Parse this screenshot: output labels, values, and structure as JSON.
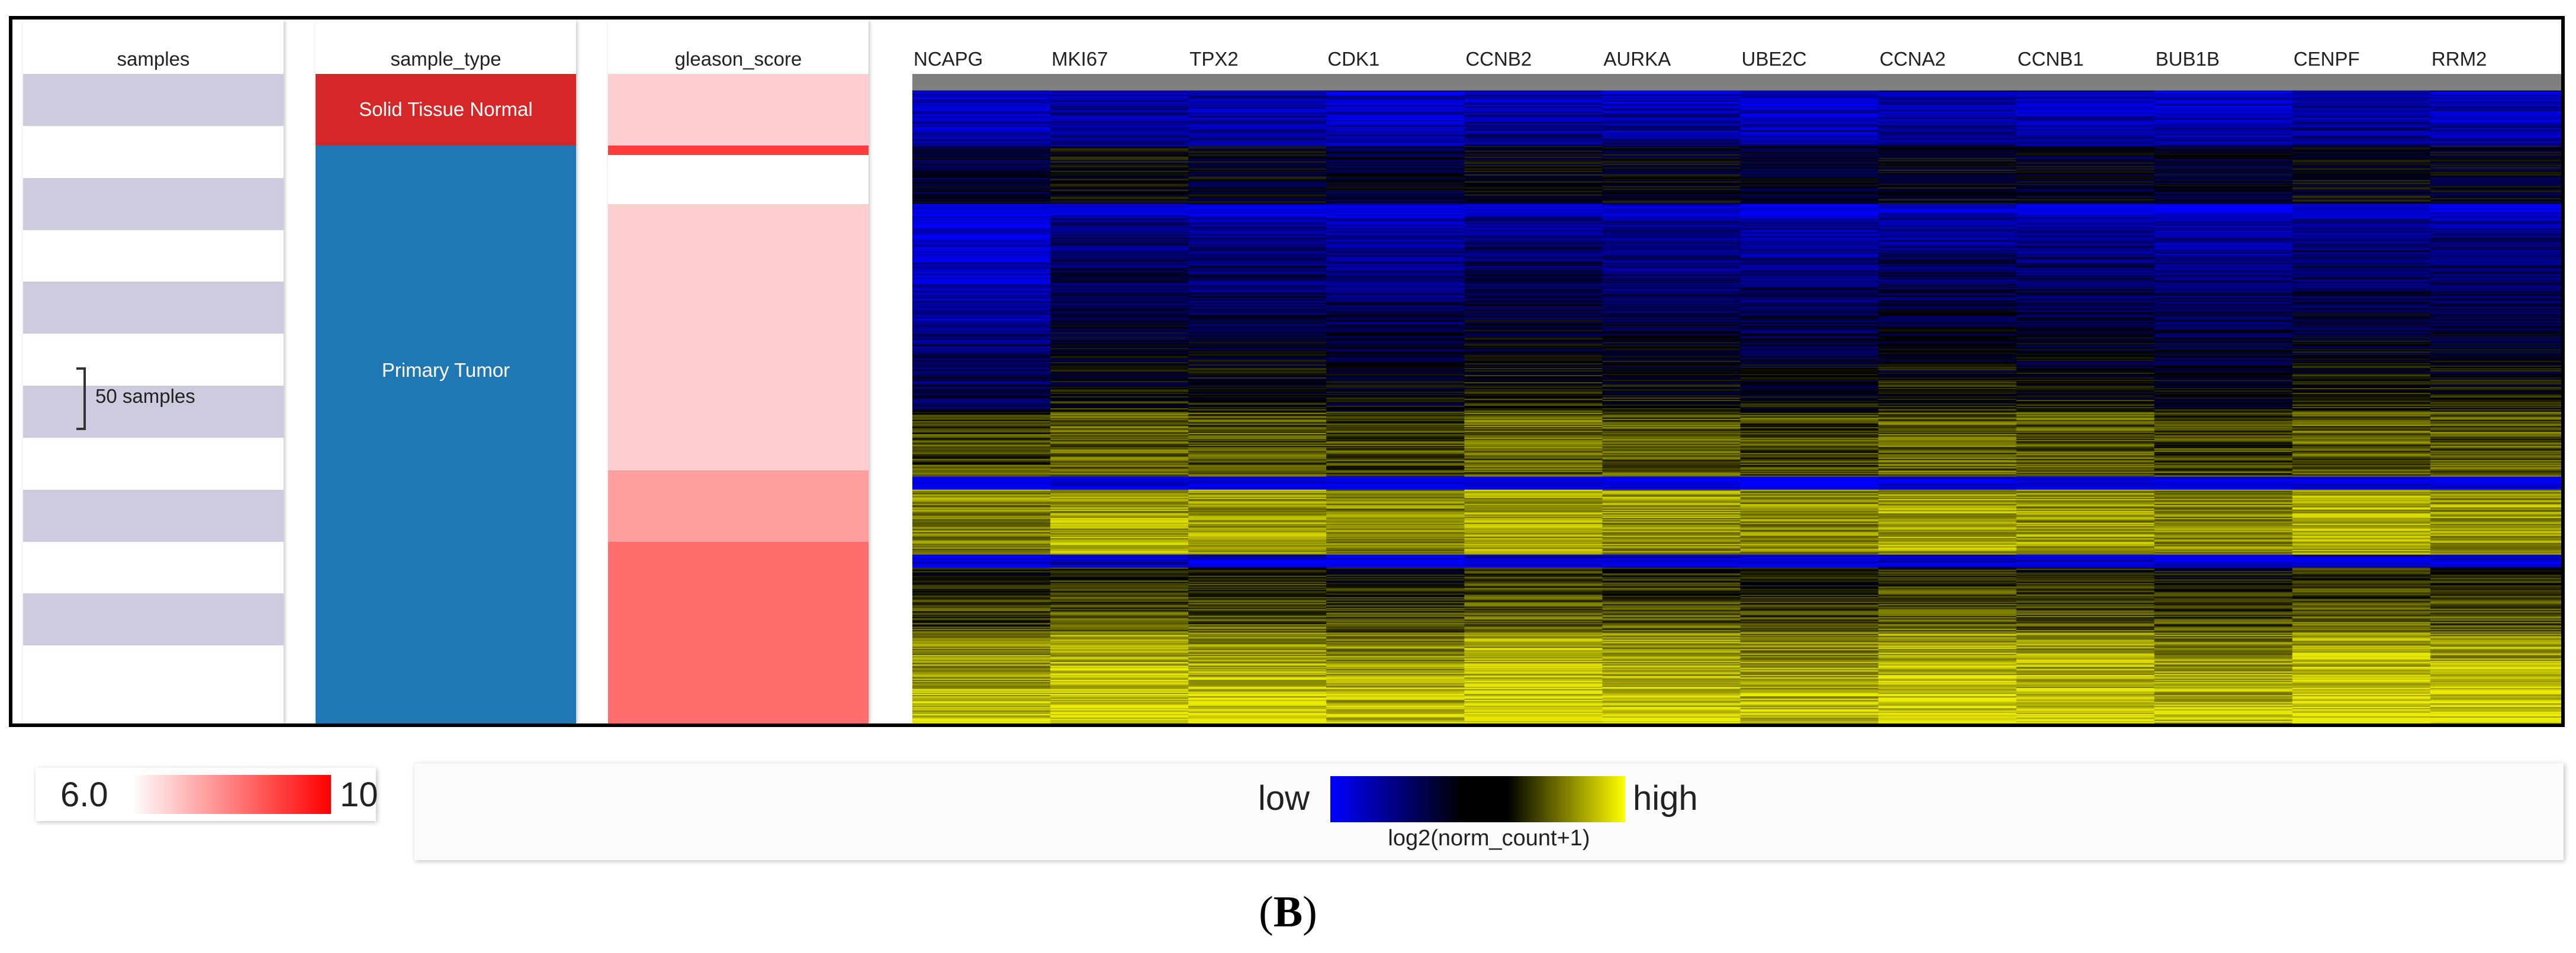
{
  "columns": {
    "samples": {
      "header": "samples",
      "bracket_label": "50 samples"
    },
    "sample_type": {
      "header": "sample_type",
      "segments": [
        {
          "label": "Solid Tissue Normal",
          "fraction": 0.11,
          "color": "#d62728"
        },
        {
          "label": "Primary Tumor",
          "fraction": 0.89,
          "color": "#1f77b4"
        }
      ]
    },
    "gleason_score": {
      "header": "gleason_score"
    }
  },
  "chart_data": {
    "type": "heatmap",
    "x": [
      "NCAPG",
      "MKI67",
      "TPX2",
      "CDK1",
      "CCNB2",
      "AURKA",
      "UBE2C",
      "CCNA2",
      "CCNB1",
      "BUB1B",
      "CENPF",
      "RRM2"
    ],
    "value_legend": {
      "low_label": "low",
      "high_label": "high",
      "caption": "log2(norm_count+1)",
      "colors": [
        "#0000ff",
        "#000000",
        "#ffff00"
      ]
    },
    "sample_count": 550,
    "gleason_legend": {
      "min": "6.0",
      "max": "10",
      "colors": [
        "#ffffff",
        "#ff0000"
      ]
    },
    "gleason_bands": [
      {
        "fraction": 0.11,
        "score": 7
      },
      {
        "fraction": 0.015,
        "score": 10
      },
      {
        "fraction": 0.075,
        "score": 6
      },
      {
        "fraction": 0.41,
        "score": 7
      },
      {
        "fraction": 0.11,
        "score": 8
      },
      {
        "fraction": 0.28,
        "score": 9
      }
    ]
  },
  "panel_label": "B"
}
